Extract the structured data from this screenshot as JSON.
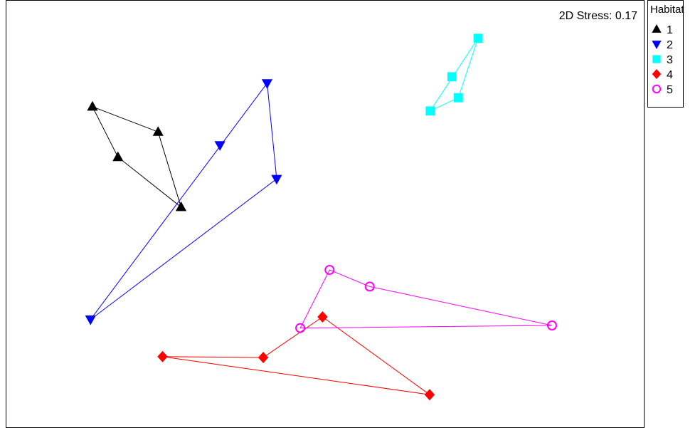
{
  "chart_data": {
    "type": "scatter",
    "title": "",
    "annotation": "2D Stress: 0.17",
    "xlabel": "",
    "ylabel": "",
    "xlim": [
      0,
      100
    ],
    "ylim": [
      0,
      100
    ],
    "grid": false,
    "axes_ticks": false,
    "hull_lines": true,
    "legend": {
      "title": "Habitat",
      "placement": "outside-top-right"
    },
    "series": [
      {
        "name": "1",
        "marker": "triangle-up",
        "color": "#000000",
        "filled": true,
        "points": [
          [
            13.5,
            75.2
          ],
          [
            17.5,
            63.4
          ],
          [
            23.8,
            69.3
          ],
          [
            27.4,
            51.7
          ]
        ],
        "hull": [
          [
            13.5,
            75.2
          ],
          [
            23.8,
            69.3
          ],
          [
            27.4,
            51.7
          ],
          [
            17.5,
            63.4
          ]
        ]
      },
      {
        "name": "2",
        "marker": "triangle-down",
        "color": "#0000ff",
        "filled": true,
        "points": [
          [
            40.9,
            80.7
          ],
          [
            33.5,
            66.2
          ],
          [
            42.4,
            58.3
          ],
          [
            13.2,
            25.4
          ]
        ],
        "hull": [
          [
            40.9,
            80.7
          ],
          [
            42.4,
            58.3
          ],
          [
            13.2,
            25.4
          ]
        ]
      },
      {
        "name": "3",
        "marker": "square",
        "color": "#00ffff",
        "filled": true,
        "points": [
          [
            74.0,
            91.2
          ],
          [
            69.9,
            82.2
          ],
          [
            70.9,
            77.3
          ],
          [
            66.5,
            74.2
          ]
        ],
        "hull": [
          [
            74.0,
            91.2
          ],
          [
            70.9,
            77.3
          ],
          [
            66.5,
            74.2
          ]
        ]
      },
      {
        "name": "4",
        "marker": "diamond",
        "color": "#ff0000",
        "filled": true,
        "points": [
          [
            24.5,
            16.7
          ],
          [
            40.3,
            16.5
          ],
          [
            49.6,
            26.0
          ],
          [
            66.4,
            7.8
          ]
        ],
        "hull": [
          [
            24.5,
            16.7
          ],
          [
            40.3,
            16.5
          ],
          [
            49.6,
            26.0
          ],
          [
            66.4,
            7.8
          ]
        ]
      },
      {
        "name": "5",
        "marker": "circle-open",
        "color": "#ff00ff",
        "filled": false,
        "points": [
          [
            50.7,
            37.0
          ],
          [
            57.0,
            33.1
          ],
          [
            85.6,
            24.0
          ],
          [
            46.1,
            23.4
          ]
        ],
        "hull": [
          [
            50.7,
            37.0
          ],
          [
            57.0,
            33.1
          ],
          [
            85.6,
            24.0
          ],
          [
            46.1,
            23.4
          ]
        ]
      }
    ]
  }
}
